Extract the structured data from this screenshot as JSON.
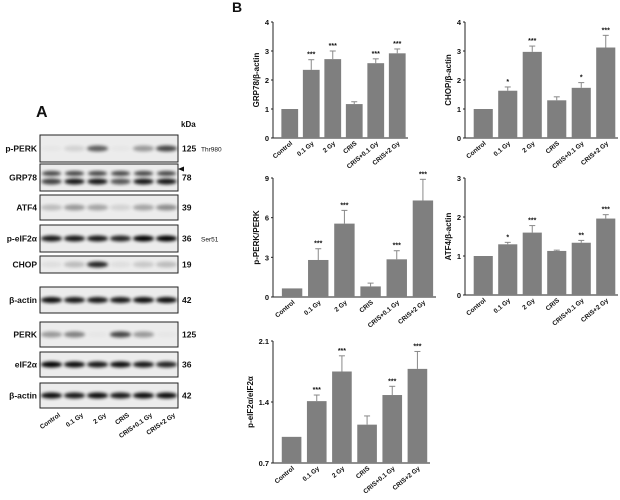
{
  "panel_a": {
    "label": "A",
    "unit_label": "kDa",
    "lanes": [
      "Control",
      "0.1 Gy",
      "2 Gy",
      "CRIS",
      "CRIS+0.1 Gy",
      "CRIS+2 Gy"
    ],
    "rows": [
      {
        "protein": "p-PERK",
        "kda": "125",
        "site": "Thr980"
      },
      {
        "protein": "GRP78",
        "kda": "78",
        "site": ""
      },
      {
        "protein": "ATF4",
        "kda": "39",
        "site": ""
      },
      {
        "protein": "p-eIF2α",
        "kda": "36",
        "site": "Ser51"
      },
      {
        "protein": "CHOP",
        "kda": "19",
        "site": ""
      },
      {
        "protein": "β-actin",
        "kda": "42",
        "site": ""
      },
      {
        "protein": "PERK",
        "kda": "125",
        "site": ""
      },
      {
        "protein": "eIF2α",
        "kda": "36",
        "site": ""
      },
      {
        "protein": "β-actin",
        "kda": "42",
        "site": ""
      }
    ]
  },
  "panel_b": {
    "label": "B"
  },
  "colors": {
    "bar": "#7f7f7f",
    "axis": "#222222"
  },
  "chart_data": [
    {
      "type": "bar",
      "ylabel": "GRP78/β-actin",
      "ylim": [
        0,
        4
      ],
      "yticks": [
        "0",
        "1",
        "2",
        "3",
        "4"
      ],
      "categories": [
        "Control",
        "0.1 Gy",
        "2 Gy",
        "CRIS",
        "CRIS+0.1 Gy",
        "CRIS+2 Gy"
      ],
      "values": [
        1.0,
        2.35,
        2.72,
        1.17,
        2.58,
        2.92
      ],
      "errors": [
        0,
        0.35,
        0.28,
        0.08,
        0.15,
        0.15
      ],
      "significance": [
        "",
        "***",
        "***",
        "",
        "***",
        "***"
      ]
    },
    {
      "type": "bar",
      "ylabel": "CHOP/β-actin",
      "ylim": [
        0,
        4
      ],
      "yticks": [
        "0",
        "1",
        "2",
        "3",
        "4"
      ],
      "categories": [
        "Control",
        "0.1 Gy",
        "2 Gy",
        "CRIS",
        "CRIS+0.1 Gy",
        "CRIS+2 Gy"
      ],
      "values": [
        1.0,
        1.63,
        2.97,
        1.3,
        1.73,
        3.12
      ],
      "errors": [
        0,
        0.13,
        0.2,
        0.12,
        0.18,
        0.42
      ],
      "significance": [
        "",
        "*",
        "***",
        "",
        "*",
        "***"
      ]
    },
    {
      "type": "bar",
      "ylabel": "p-PERK/PERK",
      "ylim": [
        0,
        9
      ],
      "yticks": [
        "0",
        "3",
        "6",
        "9"
      ],
      "categories": [
        "Control",
        "0.1 Gy",
        "2 Gy",
        "CRIS",
        "CRIS+0.1 Gy",
        "CRIS+2 Gy"
      ],
      "values": [
        0.65,
        2.8,
        5.55,
        0.8,
        2.85,
        7.3
      ],
      "errors": [
        0,
        0.85,
        1.0,
        0.25,
        0.65,
        1.6
      ],
      "significance": [
        "",
        "***",
        "***",
        "",
        "***",
        "***"
      ]
    },
    {
      "type": "bar",
      "ylabel": "ATF4/β-actin",
      "ylim": [
        0,
        3
      ],
      "yticks": [
        "0",
        "1",
        "2",
        "3"
      ],
      "categories": [
        "Control",
        "0.1 Gy",
        "2 Gy",
        "CRIS",
        "CRIS+0.1 Gy",
        "CRIS+2 Gy"
      ],
      "values": [
        1.0,
        1.3,
        1.6,
        1.13,
        1.34,
        1.96
      ],
      "errors": [
        0,
        0.05,
        0.18,
        0.02,
        0.06,
        0.1
      ],
      "significance": [
        "",
        "*",
        "***",
        "",
        "**",
        "***"
      ]
    },
    {
      "type": "bar",
      "ylabel": "p-eIF2α/eIF2α",
      "ylim": [
        0.7,
        2.1
      ],
      "yticks": [
        "0.7",
        "1.4",
        "2.1"
      ],
      "categories": [
        "Control",
        "0.1 Gy",
        "2 Gy",
        "CRIS",
        "CRIS+0.1 Gy",
        "CRIS+2 Gy"
      ],
      "values": [
        1.0,
        1.41,
        1.75,
        1.14,
        1.48,
        1.78
      ],
      "errors": [
        0,
        0.07,
        0.18,
        0.1,
        0.1,
        0.2
      ],
      "significance": [
        "",
        "***",
        "***",
        "",
        "***",
        "***"
      ]
    }
  ]
}
